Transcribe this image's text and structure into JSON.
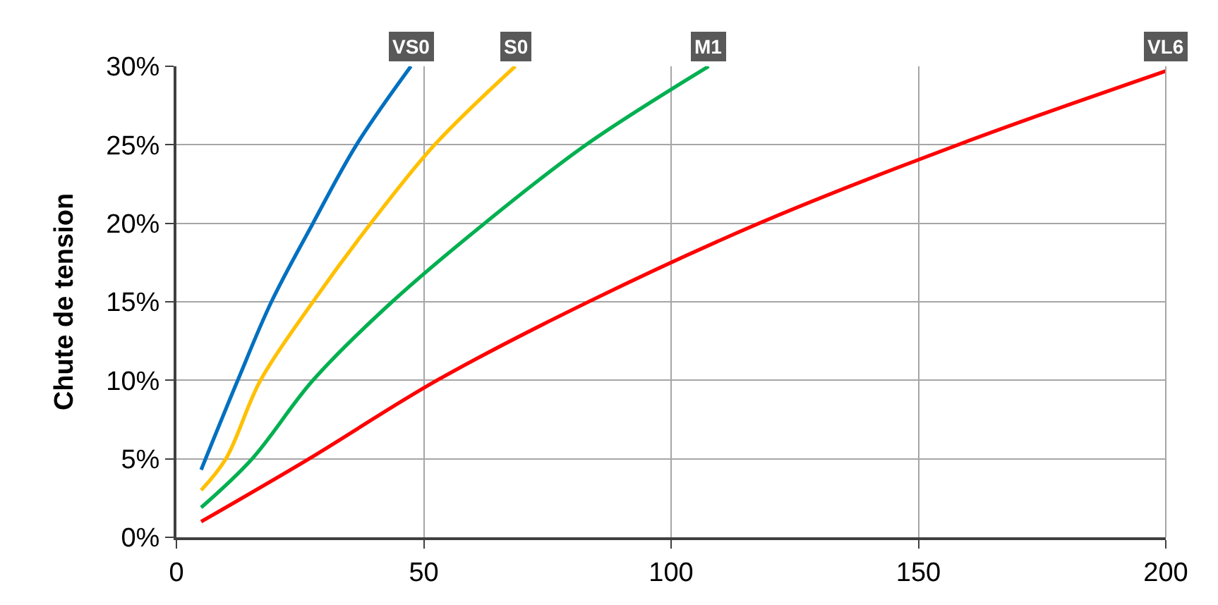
{
  "chart_data": {
    "type": "line",
    "ylabel": "Chute de tension",
    "xlim": [
      0,
      200
    ],
    "xticks": [
      0,
      50,
      100,
      150,
      200
    ],
    "ylim": [
      0,
      30
    ],
    "yticks": [
      {
        "value": 0,
        "label": "0%"
      },
      {
        "value": 5,
        "label": "5%"
      },
      {
        "value": 10,
        "label": "10%"
      },
      {
        "value": 15,
        "label": "15%"
      },
      {
        "value": 20,
        "label": "20%"
      },
      {
        "value": 25,
        "label": "25%"
      },
      {
        "value": 30,
        "label": "30%"
      }
    ],
    "grid": true,
    "legend": false,
    "marker": "none",
    "line_style": "solid",
    "series": [
      {
        "name": "VS0",
        "color": "#0070c0",
        "x": [
          5,
          12.4,
          19.2,
          27.6,
          36.4,
          47.4
        ],
        "values": [
          4.3,
          10,
          15,
          20,
          25,
          30
        ]
      },
      {
        "name": "S0",
        "color": "#ffc000",
        "x": [
          5,
          10,
          17,
          27.6,
          39.3,
          52.2,
          68.5
        ],
        "values": [
          3.0,
          5,
          10,
          15,
          20,
          25,
          30
        ]
      },
      {
        "name": "M1",
        "color": "#00b050",
        "x": [
          5,
          15.3,
          27.6,
          43.6,
          62.3,
          82.8,
          107.6
        ],
        "values": [
          1.9,
          5,
          10,
          15,
          20,
          25,
          30
        ]
      },
      {
        "name": "VL6",
        "color": "#ff0000",
        "x": [
          5,
          26.8,
          52.7,
          83.3,
          117.8,
          158,
          200
        ],
        "values": [
          1.0,
          5,
          10,
          15,
          20,
          25,
          29.7
        ]
      }
    ]
  }
}
